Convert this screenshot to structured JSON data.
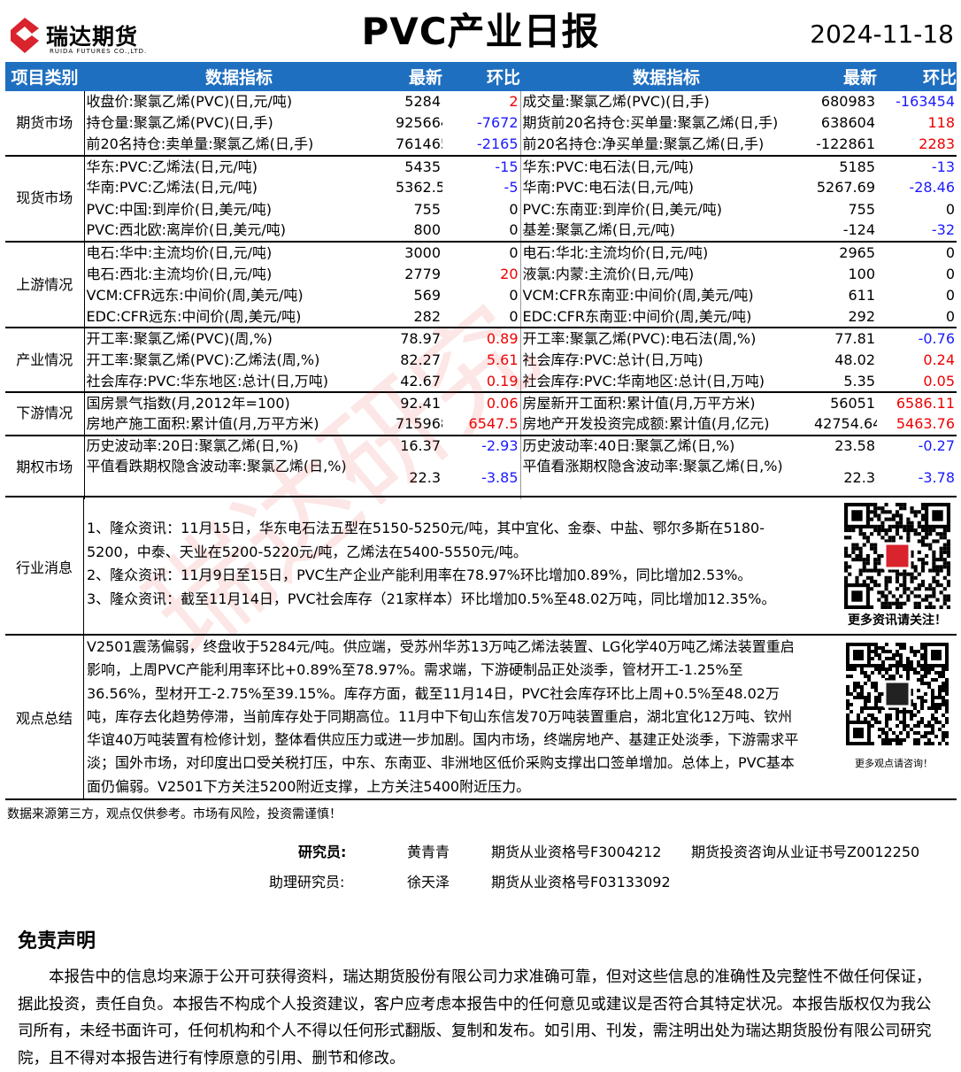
{
  "header": {
    "logo_text": "瑞达期货",
    "logo_sub": "RUIDA FUTURES CO.,LTD.",
    "title": "PVC产业日报",
    "date": "2024-11-18"
  },
  "table": {
    "headers": [
      "项目类别",
      "数据指标",
      "最新",
      "环比",
      "数据指标",
      "最新",
      "环比"
    ],
    "groups": [
      {
        "category": "期货市场",
        "rows": [
          [
            "收盘价:聚氯乙烯(PVC)(日,元/吨)",
            "5284",
            "2",
            "成交量:聚氯乙烯(PVC)(日,手)",
            "680983",
            "-163454"
          ],
          [
            "持仓量:聚氯乙烯(PVC)(日,手)",
            "925664",
            "-7672",
            "期货前20名持仓:买单量:聚氯乙烯(日,手)",
            "638604",
            "118"
          ],
          [
            "前20名持仓:卖单量:聚氯乙烯(日,手)",
            "761465",
            "-2165",
            "前20名持仓:净买单量:聚氯乙烯(日,手)",
            "-122861",
            "2283"
          ]
        ]
      },
      {
        "category": "现货市场",
        "rows": [
          [
            "华东:PVC:乙烯法(日,元/吨)",
            "5435",
            "-15",
            "华东:PVC:电石法(日,元/吨)",
            "5185",
            "-13"
          ],
          [
            "华南:PVC:乙烯法(日,元/吨)",
            "5362.5",
            "-5",
            "华南:PVC:电石法(日,元/吨)",
            "5267.69",
            "-28.46"
          ],
          [
            "PVC:中国:到岸价(日,美元/吨)",
            "755",
            "0",
            "PVC:东南亚:到岸价(日,美元/吨)",
            "755",
            "0"
          ],
          [
            "PVC:西北欧:离岸价(日,美元/吨)",
            "800",
            "0",
            "基差:聚氯乙烯(日,元/吨)",
            "-124",
            "-32"
          ]
        ]
      },
      {
        "category": "上游情况",
        "rows": [
          [
            "电石:华中:主流均价(日,元/吨)",
            "3000",
            "0",
            "电石:华北:主流均价(日,元/吨)",
            "2965",
            "0"
          ],
          [
            "电石:西北:主流均价(日,元/吨)",
            "2779",
            "20",
            "液氯:内蒙:主流价(日,元/吨)",
            "100",
            "0"
          ],
          [
            "VCM:CFR远东:中间价(周,美元/吨)",
            "569",
            "0",
            "VCM:CFR东南亚:中间价(周,美元/吨)",
            "611",
            "0"
          ],
          [
            "EDC:CFR远东:中间价(周,美元/吨)",
            "282",
            "0",
            "EDC:CFR东南亚:中间价(周,美元/吨)",
            "292",
            "0"
          ]
        ]
      },
      {
        "category": "产业情况",
        "rows": [
          [
            "开工率:聚氯乙烯(PVC)(周,%)",
            "78.97",
            "0.89",
            "开工率:聚氯乙烯(PVC):电石法(周,%)",
            "77.81",
            "-0.76"
          ],
          [
            "开工率:聚氯乙烯(PVC):乙烯法(周,%)",
            "82.27",
            "5.61",
            "社会库存:PVC:总计(日,万吨)",
            "48.02",
            "0.24"
          ],
          [
            "社会库存:PVC:华东地区:总计(日,万吨)",
            "42.67",
            "0.19",
            "社会库存:PVC:华南地区:总计(日,万吨)",
            "5.35",
            "0.05"
          ]
        ]
      },
      {
        "category": "下游情况",
        "rows": [
          [
            "国房景气指数(月,2012年=100)",
            "92.41",
            "0.06",
            "房屋新开工面积:累计值(月,万平方米)",
            "56051",
            "6586.11"
          ],
          [
            "房地产施工面积:累计值(月,万平方米)",
            "715968",
            "6547.5",
            "房地产开发投资完成额:累计值(月,亿元)",
            "42754.64",
            "5463.76"
          ]
        ]
      },
      {
        "category": "期权市场",
        "rows": [
          [
            "历史波动率:20日:聚氯乙烯(日,%)",
            "16.37",
            "-2.93",
            "历史波动率:40日:聚氯乙烯(日,%)",
            "23.58",
            "-0.27"
          ],
          [
            "平值看跌期权隐含波动率:聚氯乙烯(日,%)",
            "22.3",
            "-3.85",
            "平值看涨期权隐含波动率:聚氯乙烯(日,%)",
            "22.3",
            "-3.78"
          ]
        ]
      }
    ]
  },
  "news": {
    "label": "行业消息",
    "items": [
      "1、隆众资讯：11月15日，华东电石法五型在5150-5250元/吨，其中宜化、金泰、中盐、鄂尔多斯在5180-5200，中泰、天业在5200-5220元/吨，乙烯法在5400-5550元/吨。",
      "2、隆众资讯：11月9日至15日，PVC生产企业产能利用率在78.97%环比增加0.89%，同比增加2.53%。",
      "3、隆众资讯：截至11月14日，PVC社会库存（21家样本）环比增加0.5%至48.02万吨，同比增加12.35%。"
    ],
    "qr_caption": "更多资讯请关注！"
  },
  "view": {
    "label": "观点总结",
    "text": "V2501震荡偏弱，终盘收于5284元/吨。供应端，受苏州华苏13万吨乙烯法装置、LG化学40万吨乙烯法装置重启影响，上周PVC产能利用率环比+0.89%至78.97%。需求端，下游硬制品正处淡季，管材开工-1.25%至36.56%，型材开工-2.75%至39.15%。库存方面，截至11月14日，PVC社会库存环比上周+0.5%至48.02万吨，库存去化趋势停滞，当前库存处于同期高位。11月中下旬山东信发70万吨装置重启，湖北宜化12万吨、钦州华谊40万吨装置有检修计划，整体看供应压力或进一步加剧。国内市场，终端房地产、基建正处淡季，下游需求平淡；国外市场，对印度出口受关税打压，中东、东南亚、非洲地区低价采购支撑出口签单增加。总体上，PVC基本面仍偏弱。V2501下方关注5200附近支撑，上方关注5400附近压力。",
    "qr_caption": "更多观点请咨询！"
  },
  "footer": {
    "source": "数据来源第三方，观点仅供参考。市场有风险，投资需谨慎！",
    "researcher_label": "研究员:",
    "researcher": "黄青青",
    "researcher_cert": "期货从业资格号F3004212",
    "researcher_cert2": "期货投资咨询从业证书号Z0012250",
    "assistant_label": "助理研究员:",
    "assistant": "徐天泽",
    "assistant_cert": "期货从业资格号F03133092"
  },
  "disclaimer": {
    "title": "免责声明",
    "text": "本报告中的信息均来源于公开可获得资料，瑞达期货股份有限公司力求准确可靠，但对这些信息的准确性及完整性不做任何保证，据此投资，责任自负。本报告不构成个人投资建议，客户应考虑本报告中的任何意见或建议是否符合其特定状况。本报告版权仅为我公司所有，未经书面许可，任何机构和个人不得以任何形式翻版、复制和发布。如引用、刊发，需注明出处为瑞达期货股份有限公司研究院，且不得对本报告进行有悖原意的引用、删节和修改。"
  },
  "colors": {
    "header_bg": "#1f6fc0",
    "positive": "#e00000",
    "negative": "#1a1aff",
    "brand": "#d9232d"
  }
}
